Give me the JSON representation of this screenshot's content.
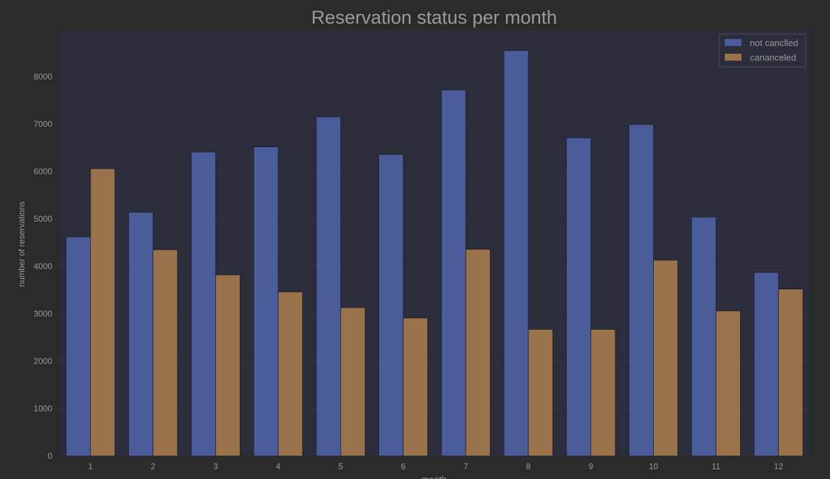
{
  "chart_data": {
    "type": "bar",
    "title": "Reservation status per month",
    "xlabel": "month",
    "ylabel": "number of reservations",
    "categories": [
      "1",
      "2",
      "3",
      "4",
      "5",
      "6",
      "7",
      "8",
      "9",
      "10",
      "11",
      "12"
    ],
    "series": [
      {
        "name": "not canclled",
        "color": "#4b5c9a",
        "values": [
          4620,
          5140,
          6410,
          6520,
          7150,
          6360,
          7720,
          8550,
          6710,
          6990,
          5040,
          3870
        ]
      },
      {
        "name": "cananceled",
        "color": "#9b734a",
        "values": [
          6060,
          4350,
          3820,
          3460,
          3130,
          2910,
          4360,
          2670,
          2670,
          4130,
          3060,
          3520
        ]
      }
    ],
    "ylim": [
      0,
      8600
    ],
    "yticks": [
      0,
      1000,
      2000,
      3000,
      4000,
      5000,
      6000,
      7000,
      8000
    ],
    "grid": true,
    "legend_position": "top-right"
  },
  "colors": {
    "page_background": "#2b2b2b",
    "plot_background": "#2c2d3b",
    "text": "#9a9a9a",
    "grid": "#34364a"
  }
}
